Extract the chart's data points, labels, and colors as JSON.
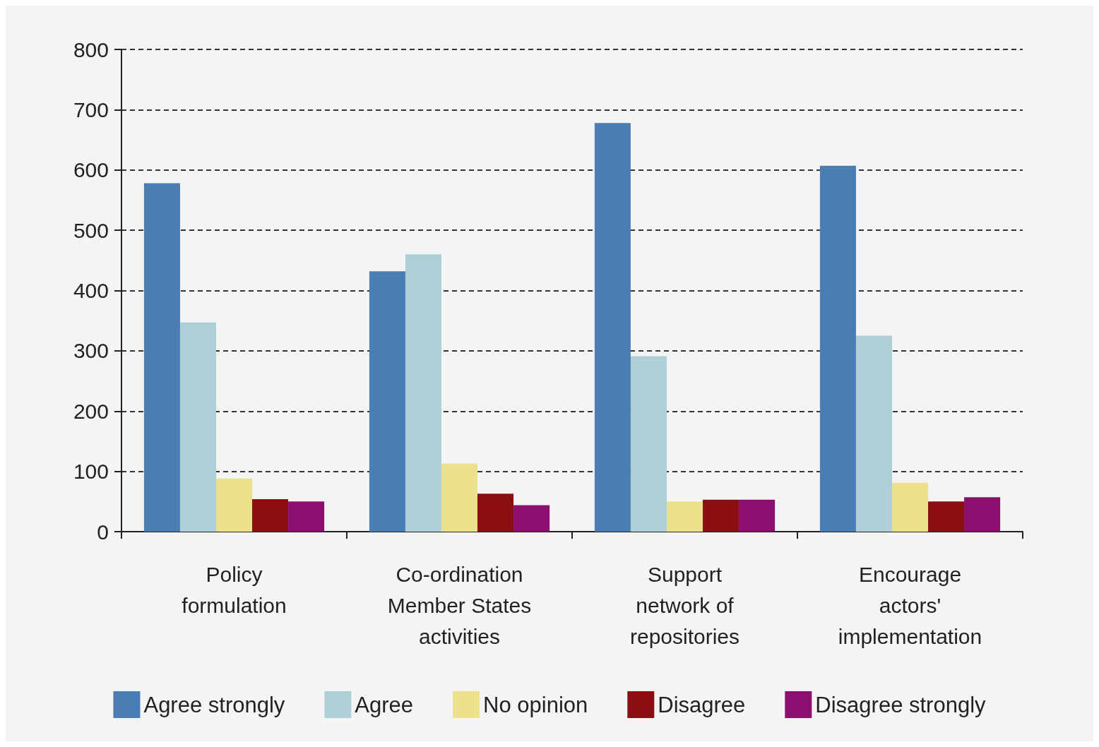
{
  "chart_data": {
    "type": "bar",
    "categories": [
      "Policy\nformulation",
      "Co-ordination\nMember States\nactivities",
      "Support\nnetwork of\nrepositories",
      "Encourage\nactors'\nimplementation"
    ],
    "series": [
      {
        "name": "Agree strongly",
        "color": "#4a7db3",
        "values": [
          578,
          432,
          678,
          607
        ]
      },
      {
        "name": "Agree",
        "color": "#aecfd5",
        "values": [
          347,
          460,
          291,
          325
        ]
      },
      {
        "name": "No opinion",
        "color": "#ece18c",
        "values": [
          88,
          113,
          50,
          81
        ]
      },
      {
        "name": "Disagree",
        "color": "#8b0e12",
        "values": [
          54,
          63,
          53,
          50
        ]
      },
      {
        "name": "Disagree strongly",
        "color": "#8a0f6e",
        "values": [
          50,
          44,
          53,
          57
        ]
      }
    ],
    "ylim": [
      0,
      800
    ],
    "yticks": [
      0,
      100,
      200,
      300,
      400,
      500,
      600,
      700,
      800
    ],
    "grid": "y",
    "legend": "bottom"
  }
}
